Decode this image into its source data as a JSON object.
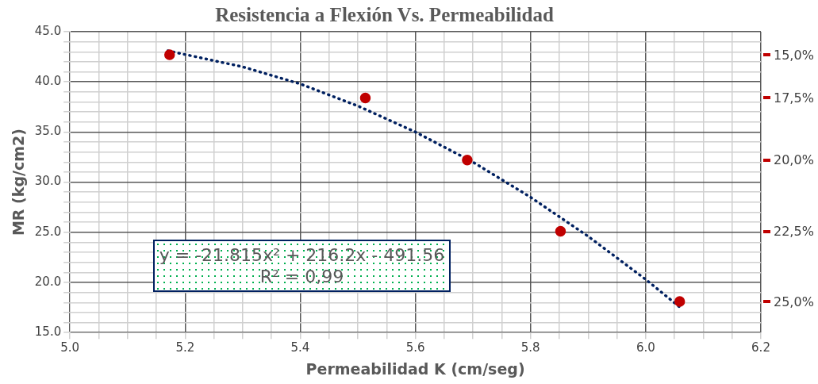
{
  "chart_data": {
    "type": "scatter",
    "title": "Resistencia a Flexión Vs. Permeabilidad",
    "xlabel": "Permeabilidad K (cm/seg)",
    "ylabel": "MR (kg/cm2)",
    "x": [
      5.173,
      5.513,
      5.69,
      5.852,
      6.059
    ],
    "series": [
      {
        "color": "#c00000",
        "marker": "circle",
        "values": [
          42.7,
          38.4,
          32.2,
          25.1,
          18.1
        ]
      },
      {
        "type": "line",
        "color": "#002060",
        "line_style": "dotted",
        "marker": "none",
        "x": [
          5.17,
          5.3,
          5.4,
          5.5,
          5.6,
          5.7,
          5.8,
          5.9,
          6.0,
          6.06
        ],
        "values": [
          43.1,
          41.5,
          39.8,
          37.6,
          35.0,
          32.0,
          28.5,
          24.6,
          20.3,
          17.5
        ]
      }
    ],
    "xlim": [
      5.0,
      6.2
    ],
    "xticks": [
      {
        "value": 5.0,
        "label": "5.0"
      },
      {
        "value": 5.05,
        "label": null
      },
      {
        "value": 5.1,
        "label": null
      },
      {
        "value": 5.15,
        "label": null
      },
      {
        "value": 5.2,
        "label": "5.2"
      },
      {
        "value": 5.25,
        "label": null
      },
      {
        "value": 5.3,
        "label": null
      },
      {
        "value": 5.35,
        "label": null
      },
      {
        "value": 5.4,
        "label": "5.4"
      },
      {
        "value": 5.45,
        "label": null
      },
      {
        "value": 5.5,
        "label": null
      },
      {
        "value": 5.55,
        "label": null
      },
      {
        "value": 5.6,
        "label": "5.6"
      },
      {
        "value": 5.65,
        "label": null
      },
      {
        "value": 5.7,
        "label": null
      },
      {
        "value": 5.75,
        "label": null
      },
      {
        "value": 5.8,
        "label": "5.8"
      },
      {
        "value": 5.85,
        "label": null
      },
      {
        "value": 5.9,
        "label": null
      },
      {
        "value": 5.95,
        "label": null
      },
      {
        "value": 6.0,
        "label": "6.0"
      },
      {
        "value": 6.05,
        "label": null
      },
      {
        "value": 6.1,
        "label": null
      },
      {
        "value": 6.15,
        "label": null
      },
      {
        "value": 6.2,
        "label": "6.2"
      }
    ],
    "ylim": [
      15,
      45
    ],
    "yticks": [
      {
        "value": 15,
        "label": "15.0"
      },
      {
        "value": 16,
        "label": null
      },
      {
        "value": 17,
        "label": null
      },
      {
        "value": 18,
        "label": null
      },
      {
        "value": 19,
        "label": null
      },
      {
        "value": 20,
        "label": "20.0"
      },
      {
        "value": 21,
        "label": null
      },
      {
        "value": 22,
        "label": null
      },
      {
        "value": 23,
        "label": null
      },
      {
        "value": 24,
        "label": null
      },
      {
        "value": 25,
        "label": "25.0"
      },
      {
        "value": 26,
        "label": null
      },
      {
        "value": 27,
        "label": null
      },
      {
        "value": 28,
        "label": null
      },
      {
        "value": 29,
        "label": null
      },
      {
        "value": 30,
        "label": "30.0"
      },
      {
        "value": 31,
        "label": null
      },
      {
        "value": 32,
        "label": null
      },
      {
        "value": 33,
        "label": null
      },
      {
        "value": 34,
        "label": null
      },
      {
        "value": 35,
        "label": "35.0"
      },
      {
        "value": 36,
        "label": null
      },
      {
        "value": 37,
        "label": null
      },
      {
        "value": 38,
        "label": null
      },
      {
        "value": 39,
        "label": null
      },
      {
        "value": 40,
        "label": "40.0"
      },
      {
        "value": 41,
        "label": null
      },
      {
        "value": 42,
        "label": null
      },
      {
        "value": 43,
        "label": null
      },
      {
        "value": 44,
        "label": null
      },
      {
        "value": 45,
        "label": "45.0"
      }
    ],
    "grid": true,
    "legend": false,
    "annotations": [
      "y = -21.815x² + 216.2x - 491.56\nR² = 0,99",
      "15,0%",
      "17,5%",
      "20,0%",
      "22,5%",
      "25,0%"
    ]
  }
}
